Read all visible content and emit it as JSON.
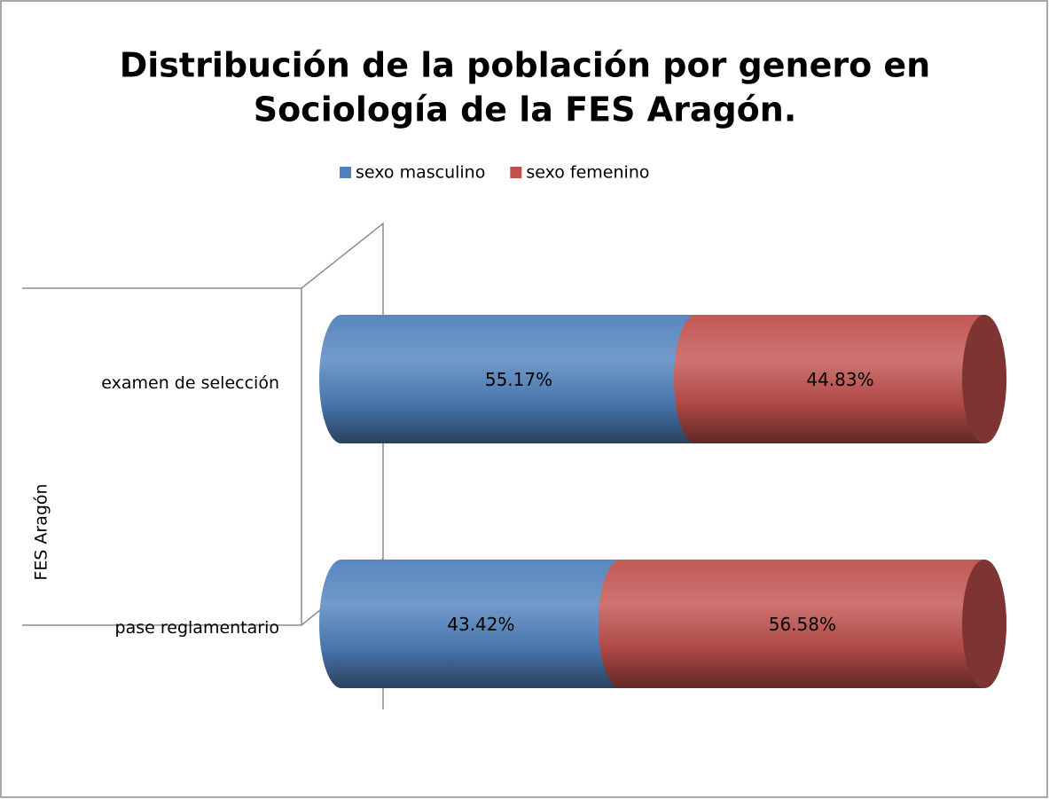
{
  "chart_data": {
    "type": "bar",
    "orientation": "horizontal",
    "stacked": true,
    "title": [
      "Distribución de la población por genero en",
      "Sociología de la FES Aragón."
    ],
    "y_label": "FES Aragón",
    "categories": [
      "examen de selección",
      "pase reglamentario"
    ],
    "series": [
      {
        "name": "sexo masculino",
        "color": "#4f81bd",
        "values": [
          55.17,
          43.42
        ],
        "value_labels": [
          "55.17%",
          "43.42%"
        ]
      },
      {
        "name": "sexo femenino",
        "color": "#c0504d",
        "values": [
          44.83,
          56.58
        ],
        "value_labels": [
          "44.83%",
          "56.58%"
        ]
      }
    ],
    "xlim": [
      0,
      100
    ],
    "legend": "top"
  }
}
